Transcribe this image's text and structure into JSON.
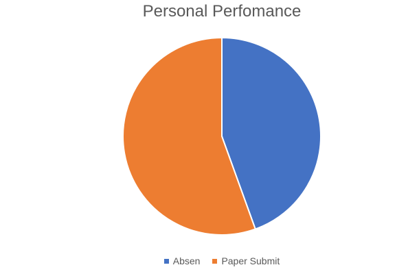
{
  "chart_data": {
    "type": "pie",
    "title": "Personal Perfomance",
    "categories": [
      "Absen",
      "Paper Submit"
    ],
    "values": [
      44.5,
      55.5
    ],
    "colors": [
      "#4472C4",
      "#ED7D31"
    ],
    "start_angle_deg": 0,
    "direction": "clockwise",
    "legend_position": "bottom"
  }
}
